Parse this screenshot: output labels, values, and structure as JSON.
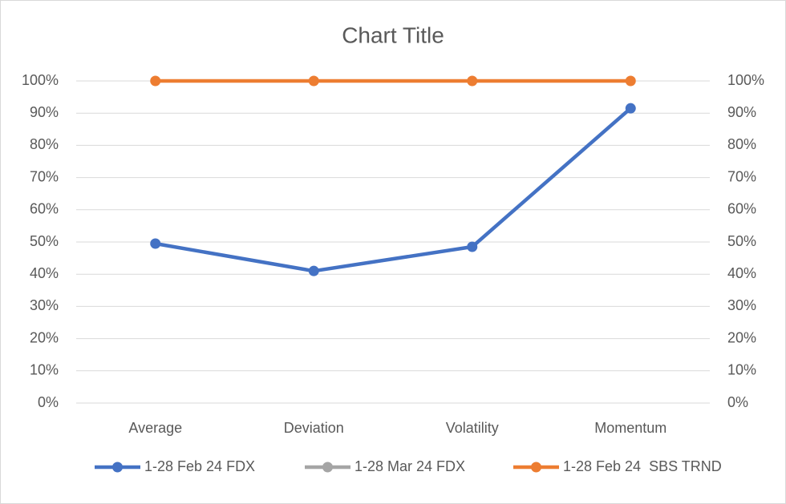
{
  "chart_data": {
    "type": "line",
    "title": "Chart Title",
    "categories": [
      "Average",
      "Deviation",
      "Volatility",
      "Momentum"
    ],
    "series": [
      {
        "name": "1-28 Feb 24 FDX",
        "color": "#4472c4",
        "values": [
          49.5,
          41,
          48.5,
          91.5
        ]
      },
      {
        "name": "1-28 Mar 24 FDX",
        "color": "#a5a5a5",
        "values": [
          null,
          null,
          null,
          null
        ]
      },
      {
        "name": "1-28 Feb 24  SBS TRND",
        "color": "#ed7d31",
        "values": [
          100,
          100,
          100,
          100
        ],
        "axis": "y2"
      }
    ],
    "ylim": [
      0,
      100
    ],
    "yticks": [
      {
        "value": 0,
        "label": "0%"
      },
      {
        "value": 10,
        "label": "10%"
      },
      {
        "value": 20,
        "label": "20%"
      },
      {
        "value": 30,
        "label": "30%"
      },
      {
        "value": 40,
        "label": "40%"
      },
      {
        "value": 50,
        "label": "50%"
      },
      {
        "value": 60,
        "label": "60%"
      },
      {
        "value": 70,
        "label": "70%"
      },
      {
        "value": 80,
        "label": "80%"
      },
      {
        "value": 90,
        "label": "90%"
      },
      {
        "value": 100,
        "label": "100%"
      }
    ],
    "y2lim": [
      0,
      100
    ],
    "y2ticks": [
      {
        "value": 0,
        "label": "0%"
      },
      {
        "value": 10,
        "label": "10%"
      },
      {
        "value": 20,
        "label": "20%"
      },
      {
        "value": 30,
        "label": "30%"
      },
      {
        "value": 40,
        "label": "40%"
      },
      {
        "value": 50,
        "label": "50%"
      },
      {
        "value": 60,
        "label": "60%"
      },
      {
        "value": 70,
        "label": "70%"
      },
      {
        "value": 80,
        "label": "80%"
      },
      {
        "value": 90,
        "label": "90%"
      },
      {
        "value": 100,
        "label": "100%"
      }
    ],
    "grid": true,
    "legend": "bottom"
  }
}
